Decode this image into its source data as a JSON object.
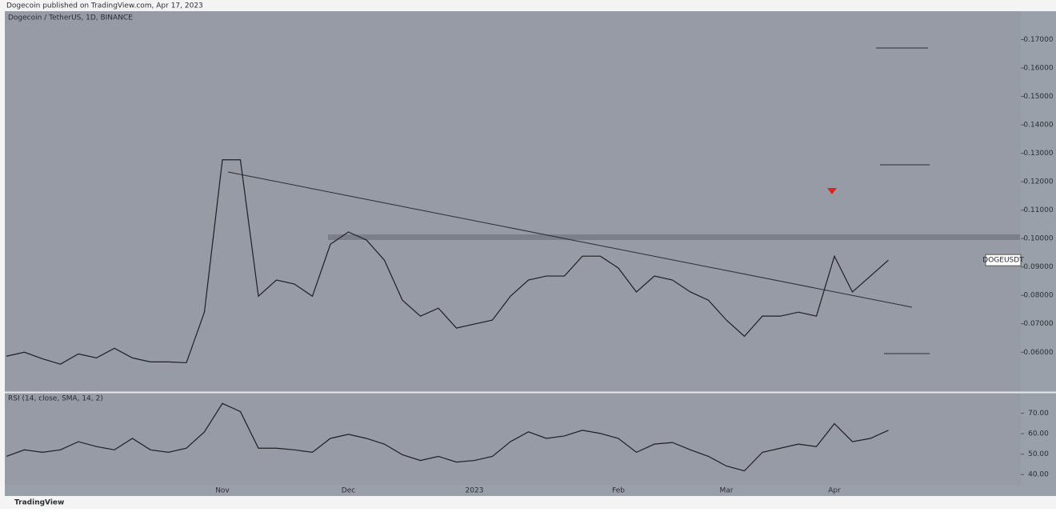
{
  "header": "Dogecoin published on TradingView.com, Apr 17, 2023",
  "footer": "TradingView",
  "chart_data": [
    {
      "type": "line",
      "title": "Dogecoin / TetherUS, 1D, BINANCE",
      "color": "#1e1f24",
      "price_label": "DOGEUSDT",
      "categories": [
        null,
        null,
        null,
        null,
        null,
        null,
        null,
        null,
        null,
        null,
        null,
        null,
        "Nov",
        null,
        null,
        null,
        null,
        null,
        null,
        "Dec",
        null,
        null,
        null,
        null,
        null,
        null,
        "2023",
        null,
        null,
        null,
        null,
        null,
        null,
        null,
        "Feb",
        null,
        null,
        null,
        null,
        null,
        "Mar",
        null,
        null,
        null,
        null,
        null,
        "Apr",
        null,
        null,
        null
      ],
      "values": [
        0.0586,
        0.06,
        0.0577,
        0.0558,
        0.0594,
        0.058,
        0.0614,
        0.058,
        0.0566,
        0.0566,
        0.0563,
        0.0741,
        0.1277,
        0.1277,
        0.0797,
        0.0854,
        0.084,
        0.0797,
        0.098,
        0.1023,
        0.0995,
        0.0924,
        0.0783,
        0.0727,
        0.0755,
        0.0685,
        0.0699,
        0.0713,
        0.0797,
        0.0854,
        0.0868,
        0.0868,
        0.0938,
        0.0938,
        0.0896,
        0.0812,
        0.0868,
        0.0854,
        0.0812,
        0.0783,
        0.0713,
        0.0656,
        0.0727,
        0.0727,
        0.0741,
        0.0727,
        0.0938,
        0.0812,
        0.0868,
        0.0924
      ],
      "ylim": [
        0.046,
        0.18
      ],
      "yticks": [
        {
          "value": 0.06,
          "label": "0.06000"
        },
        {
          "value": 0.07,
          "label": "0.07000"
        },
        {
          "value": 0.08,
          "label": "0.08000"
        },
        {
          "value": 0.09,
          "label": "0.09000"
        },
        {
          "value": 0.1,
          "label": "0.10000"
        },
        {
          "value": 0.11,
          "label": "0.11000"
        },
        {
          "value": 0.12,
          "label": "0.12000"
        },
        {
          "value": 0.13,
          "label": "0.13000"
        },
        {
          "value": 0.14,
          "label": "0.14000"
        },
        {
          "value": 0.15,
          "label": "0.15000"
        },
        {
          "value": 0.16,
          "label": "0.16000"
        },
        {
          "value": 0.17,
          "label": "0.17000"
        }
      ]
    },
    {
      "type": "line",
      "title": "RSI (14, close, SMA, 14, 2)",
      "color": "#1e1f24",
      "values": [
        48.9,
        52.1,
        50.9,
        52.1,
        56.1,
        53.7,
        52.1,
        57.7,
        52.1,
        50.9,
        52.9,
        60.9,
        74.8,
        70.8,
        52.9,
        52.9,
        52.1,
        50.9,
        57.7,
        59.7,
        57.7,
        54.9,
        49.7,
        46.9,
        48.9,
        46.1,
        46.9,
        48.9,
        56.1,
        60.9,
        57.7,
        58.9,
        61.7,
        60.1,
        57.7,
        50.9,
        54.9,
        55.7,
        52.1,
        48.9,
        44.2,
        41.8,
        50.9,
        52.9,
        54.9,
        53.7,
        64.9,
        56.1,
        57.7,
        61.7
      ],
      "ylim": [
        35,
        80
      ],
      "yticks": [
        {
          "value": 40,
          "label": "40.00"
        },
        {
          "value": 50,
          "label": "50.00"
        },
        {
          "value": 60,
          "label": "60.00"
        },
        {
          "value": 70,
          "label": "70.00"
        }
      ]
    }
  ]
}
